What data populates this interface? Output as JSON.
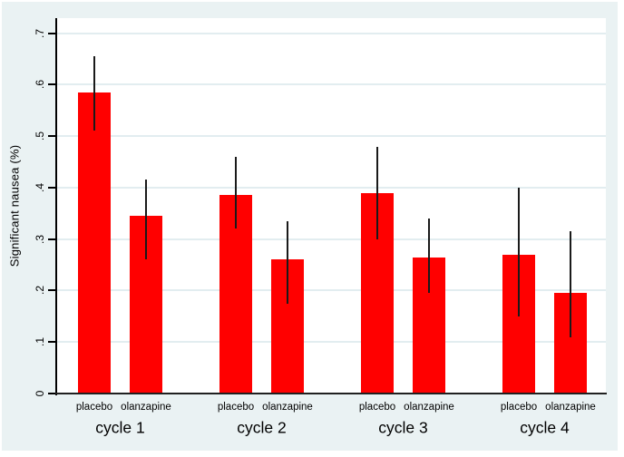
{
  "figure": {
    "background_color": "#eaf2f3",
    "plot_background_color": "#ffffff",
    "grid_color": "#e2edf0",
    "axis_color": "#000000"
  },
  "chart_data": {
    "type": "bar",
    "title": "",
    "xlabel": "",
    "ylabel": "Significant nausea (%)",
    "ylim": [
      0,
      0.732
    ],
    "yticks": [
      0,
      0.1,
      0.2,
      0.3,
      0.4,
      0.5,
      0.6,
      0.7
    ],
    "ytick_labels": [
      "0",
      ".1",
      ".2",
      ".3",
      ".4",
      ".5",
      ".6",
      ".7"
    ],
    "grid": true,
    "legend": null,
    "bar_color": "#ff0000",
    "error_bar_color": "#1a1a1a",
    "error_bar_style": "spike-no-cap",
    "groups": [
      {
        "label": "cycle 1",
        "bars": [
          {
            "label": "placebo",
            "value": 0.585,
            "ci_low": 0.51,
            "ci_high": 0.655
          },
          {
            "label": "olanzapine",
            "value": 0.345,
            "ci_low": 0.26,
            "ci_high": 0.415
          }
        ]
      },
      {
        "label": "cycle 2",
        "bars": [
          {
            "label": "placebo",
            "value": 0.385,
            "ci_low": 0.32,
            "ci_high": 0.46
          },
          {
            "label": "olanzapine",
            "value": 0.26,
            "ci_low": 0.175,
            "ci_high": 0.335
          }
        ]
      },
      {
        "label": "cycle 3",
        "bars": [
          {
            "label": "placebo",
            "value": 0.39,
            "ci_low": 0.3,
            "ci_high": 0.48
          },
          {
            "label": "olanzapine",
            "value": 0.265,
            "ci_low": 0.195,
            "ci_high": 0.34
          }
        ]
      },
      {
        "label": "cycle 4",
        "bars": [
          {
            "label": "placebo",
            "value": 0.27,
            "ci_low": 0.15,
            "ci_high": 0.4
          },
          {
            "label": "olanzapine",
            "value": 0.195,
            "ci_low": 0.11,
            "ci_high": 0.315
          }
        ]
      }
    ]
  }
}
